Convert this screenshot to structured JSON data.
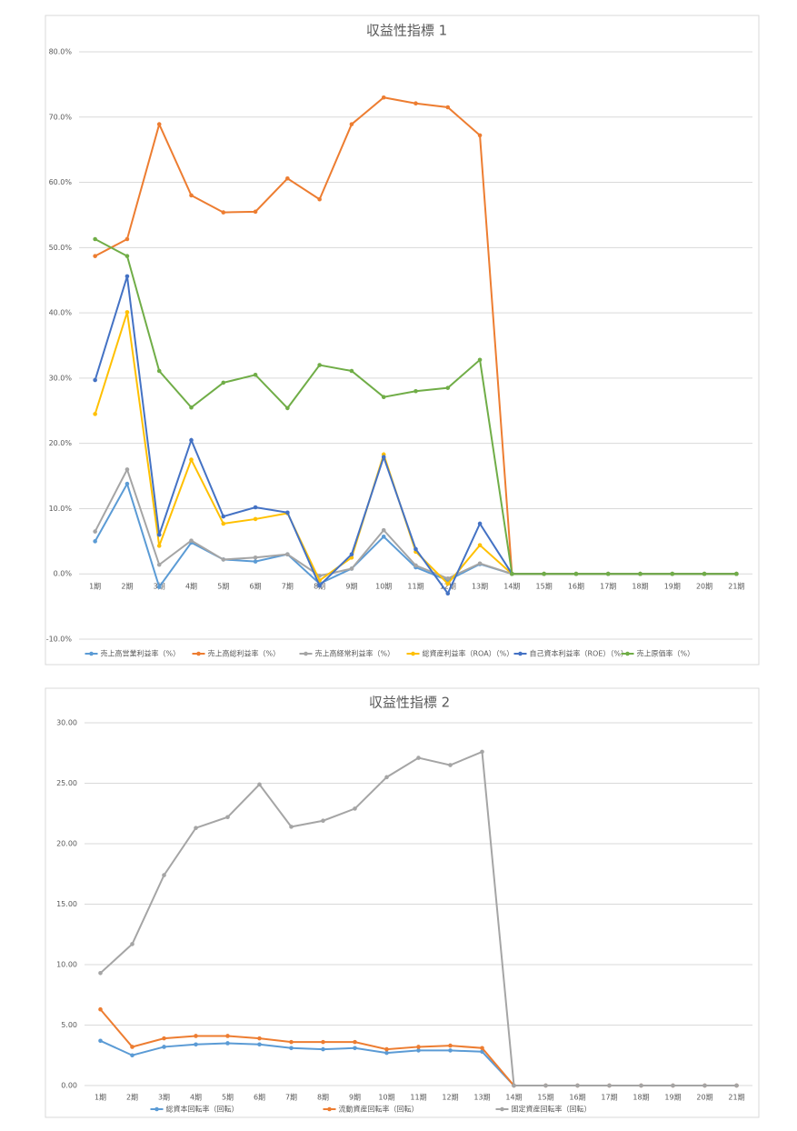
{
  "chart_data": [
    {
      "type": "line",
      "title": "収益性指標 1",
      "categories": [
        "1期",
        "2期",
        "3期",
        "4期",
        "5期",
        "6期",
        "7期",
        "8期",
        "9期",
        "10期",
        "11期",
        "12期",
        "13期",
        "14期",
        "15期",
        "16期",
        "17期",
        "18期",
        "19期",
        "20期",
        "21期"
      ],
      "ylim": [
        -10,
        80
      ],
      "yticks": [
        {
          "value": -10,
          "label": "-10.0%"
        },
        {
          "value": 0,
          "label": "0.0%"
        },
        {
          "value": 10,
          "label": "10.0%"
        },
        {
          "value": 20,
          "label": "20.0%"
        },
        {
          "value": 30,
          "label": "30.0%"
        },
        {
          "value": 40,
          "label": "40.0%"
        },
        {
          "value": 50,
          "label": "50.0%"
        },
        {
          "value": 60,
          "label": "60.0%"
        },
        {
          "value": 70,
          "label": "70.0%"
        },
        {
          "value": 80,
          "label": "80.0%"
        }
      ],
      "grid": true,
      "legend": "bottom",
      "series": [
        {
          "name": "売上高営業利益率（%）",
          "color": "#5b9bd5",
          "values": [
            5.0,
            13.8,
            -2.0,
            4.8,
            2.2,
            1.9,
            3.0,
            -1.5,
            0.8,
            5.7,
            1.0,
            -1.0,
            1.5,
            0,
            0,
            0,
            0,
            0,
            0,
            0,
            0
          ]
        },
        {
          "name": "売上高総利益率（%）",
          "color": "#ed7d31",
          "values": [
            48.7,
            51.3,
            68.9,
            58.0,
            55.4,
            55.5,
            60.6,
            57.4,
            68.9,
            73.0,
            72.1,
            71.5,
            67.2,
            0,
            0,
            0,
            0,
            0,
            0,
            0,
            0
          ]
        },
        {
          "name": "売上高経常利益率（%）",
          "color": "#a5a5a5",
          "values": [
            6.5,
            16.0,
            1.4,
            5.1,
            2.2,
            2.5,
            3.0,
            -0.3,
            0.8,
            6.7,
            1.3,
            -0.7,
            1.6,
            0,
            0,
            0,
            0,
            0,
            0,
            0,
            0
          ]
        },
        {
          "name": "総資産利益率（ROA）（%）",
          "color": "#ffc000",
          "values": [
            24.5,
            40.1,
            4.3,
            17.5,
            7.7,
            8.4,
            9.3,
            -1.0,
            2.5,
            18.3,
            3.4,
            -1.5,
            4.4,
            0,
            0,
            0,
            0,
            0,
            0,
            0,
            0
          ]
        },
        {
          "name": "自己資本利益率（ROE）（%）",
          "color": "#4472c4",
          "values": [
            29.7,
            45.6,
            6.0,
            20.5,
            8.8,
            10.2,
            9.4,
            -1.8,
            3.0,
            17.9,
            3.8,
            -3.0,
            7.7,
            0,
            0,
            0,
            0,
            0,
            0,
            0,
            0
          ]
        },
        {
          "name": "売上原価率（%）",
          "color": "#70ad47",
          "values": [
            51.3,
            48.7,
            31.1,
            25.5,
            29.3,
            30.5,
            25.4,
            32.0,
            31.1,
            27.1,
            28.0,
            28.5,
            32.8,
            0,
            0,
            0,
            0,
            0,
            0,
            0,
            0
          ]
        }
      ]
    },
    {
      "type": "line",
      "title": "収益性指標 2",
      "categories": [
        "1期",
        "2期",
        "3期",
        "4期",
        "5期",
        "6期",
        "7期",
        "8期",
        "9期",
        "10期",
        "11期",
        "12期",
        "13期",
        "14期",
        "15期",
        "16期",
        "17期",
        "18期",
        "19期",
        "20期",
        "21期"
      ],
      "ylim": [
        0,
        30
      ],
      "yticks": [
        {
          "value": 0,
          "label": "0.00"
        },
        {
          "value": 5,
          "label": "5.00"
        },
        {
          "value": 10,
          "label": "10.00"
        },
        {
          "value": 15,
          "label": "15.00"
        },
        {
          "value": 20,
          "label": "20.00"
        },
        {
          "value": 25,
          "label": "25.00"
        },
        {
          "value": 30,
          "label": "30.00"
        }
      ],
      "grid": true,
      "legend": "bottom",
      "series": [
        {
          "name": "総資本回転率（回転）",
          "color": "#5b9bd5",
          "values": [
            3.7,
            2.5,
            3.2,
            3.4,
            3.5,
            3.4,
            3.1,
            3.0,
            3.1,
            2.7,
            2.9,
            2.9,
            2.8,
            0,
            0,
            0,
            0,
            0,
            0,
            0,
            0
          ]
        },
        {
          "name": "流動資産回転率（回転）",
          "color": "#ed7d31",
          "values": [
            6.3,
            3.2,
            3.9,
            4.1,
            4.1,
            3.9,
            3.6,
            3.6,
            3.6,
            3.0,
            3.2,
            3.3,
            3.1,
            0,
            0,
            0,
            0,
            0,
            0,
            0,
            0
          ]
        },
        {
          "name": "固定資産回転率（回転）",
          "color": "#a5a5a5",
          "values": [
            9.3,
            11.7,
            17.4,
            21.3,
            22.2,
            24.9,
            21.4,
            21.9,
            22.9,
            25.5,
            27.1,
            26.5,
            27.6,
            0,
            0,
            0,
            0,
            0,
            0,
            0,
            0
          ]
        }
      ]
    }
  ]
}
